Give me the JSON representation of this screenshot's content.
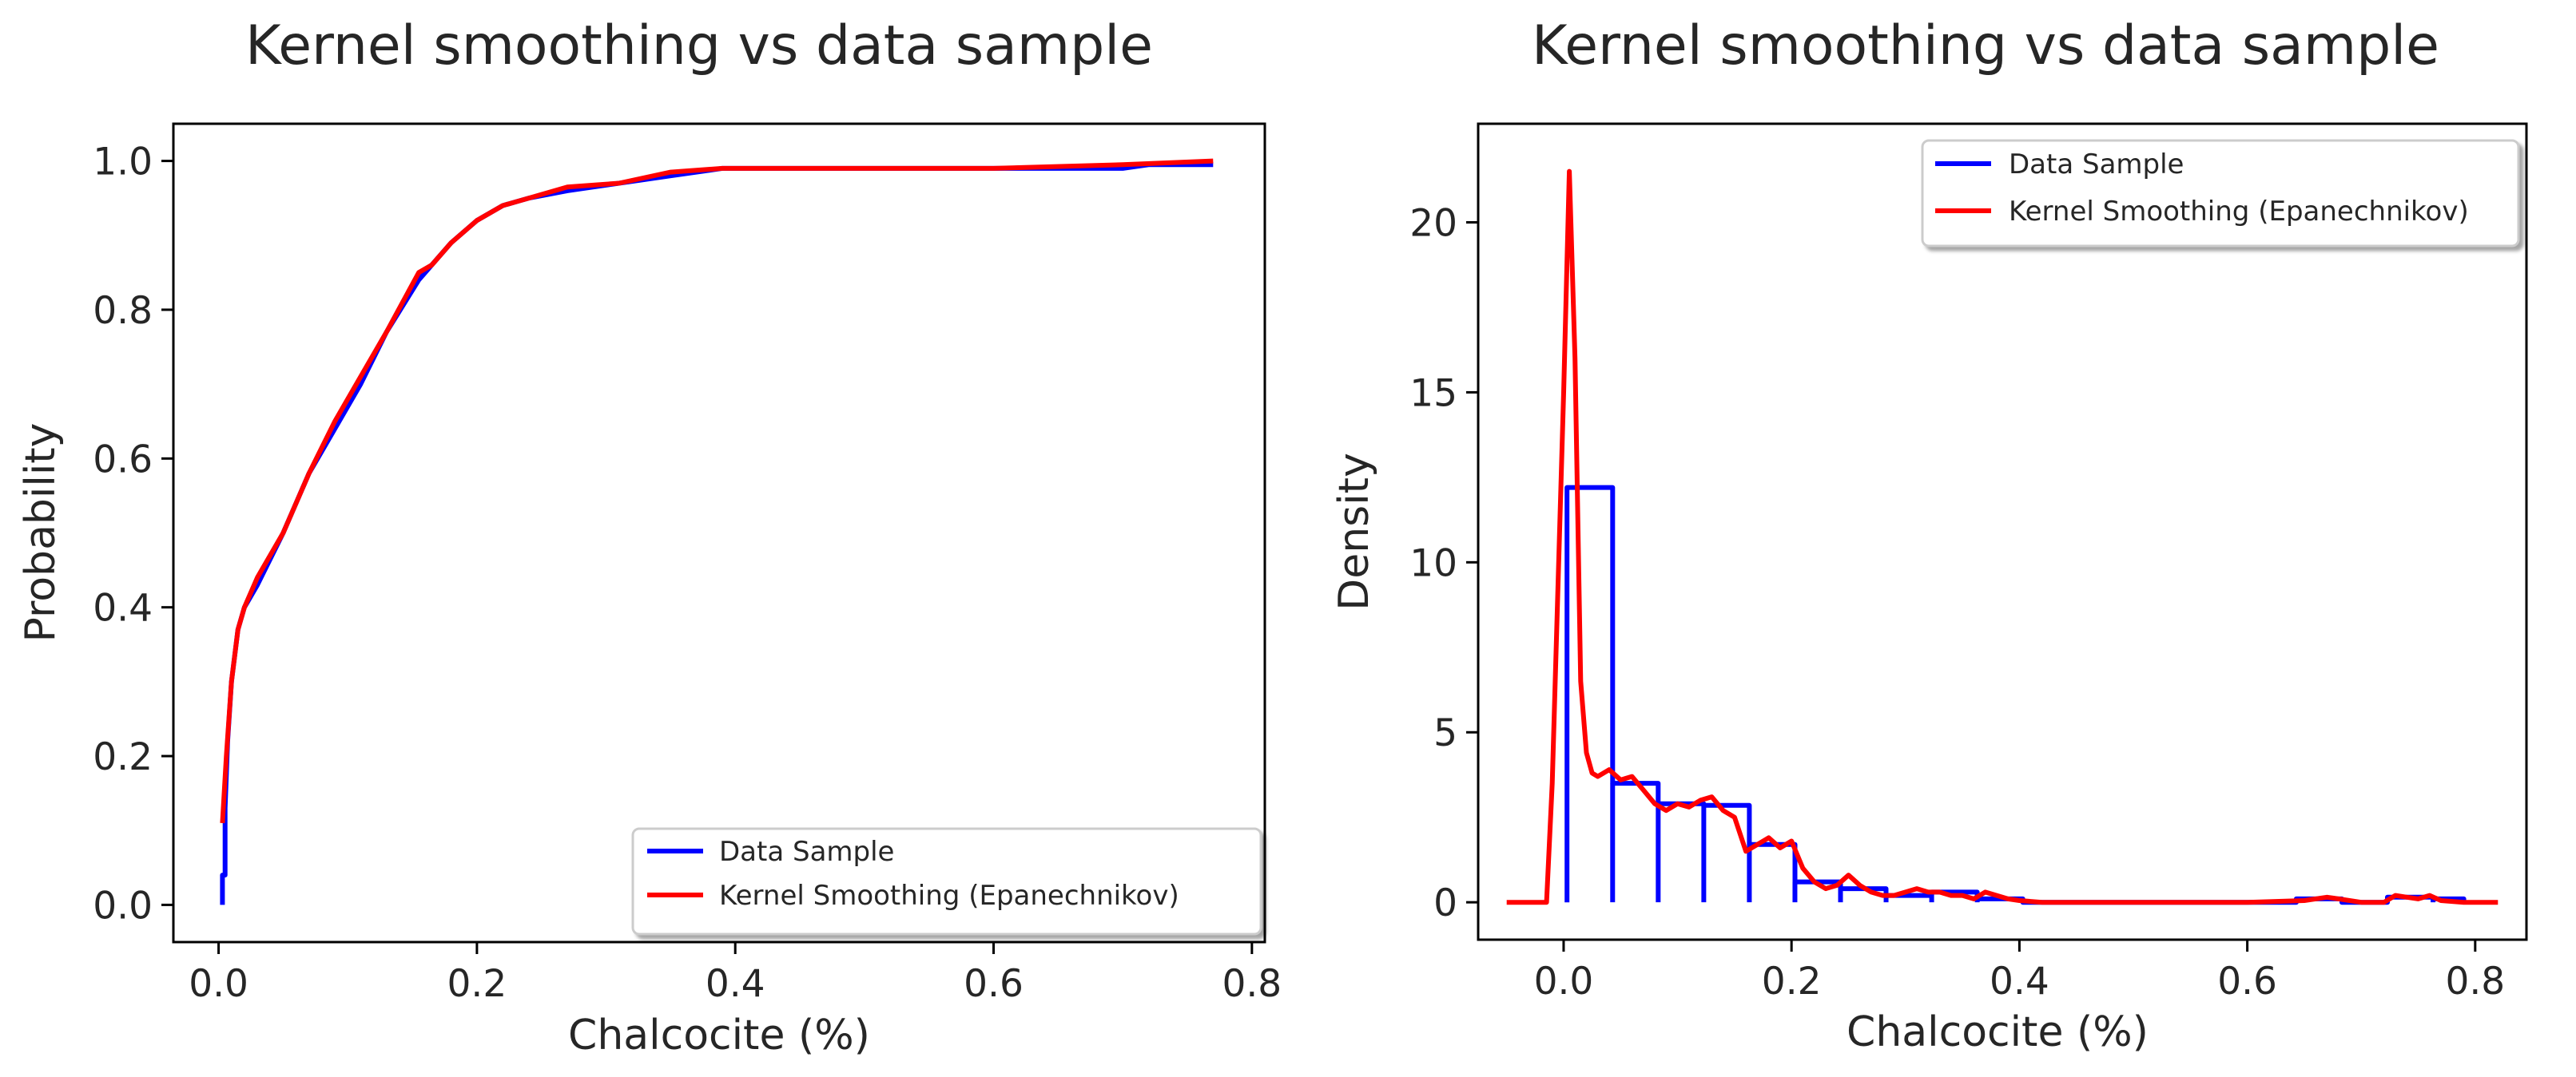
{
  "chart_data": [
    {
      "type": "line",
      "title": "Kernel smoothing vs data sample",
      "xlabel": "Chalcocite (%)",
      "ylabel": "Probability",
      "xlim": [
        -0.035,
        0.81
      ],
      "ylim": [
        -0.05,
        1.05
      ],
      "xticks": [
        0.0,
        0.2,
        0.4,
        0.6,
        0.8
      ],
      "xtick_labels": [
        "0.0",
        "0.2",
        "0.4",
        "0.6",
        "0.8"
      ],
      "yticks": [
        0.0,
        0.2,
        0.4,
        0.6,
        0.8,
        1.0
      ],
      "ytick_labels": [
        "0.0",
        "0.2",
        "0.4",
        "0.6",
        "0.8",
        "1.0"
      ],
      "legend": "lower-right",
      "series": [
        {
          "name": "Data Sample",
          "color": "#0000ff",
          "x": [
            0.003,
            0.003,
            0.005,
            0.005,
            0.007,
            0.01,
            0.015,
            0.02,
            0.03,
            0.05,
            0.07,
            0.09,
            0.11,
            0.13,
            0.155,
            0.165,
            0.18,
            0.2,
            0.22,
            0.24,
            0.27,
            0.31,
            0.35,
            0.39,
            0.4,
            0.6,
            0.7,
            0.72,
            0.77
          ],
          "y": [
            0.0,
            0.04,
            0.04,
            0.13,
            0.22,
            0.3,
            0.37,
            0.4,
            0.43,
            0.5,
            0.58,
            0.64,
            0.7,
            0.77,
            0.84,
            0.86,
            0.89,
            0.92,
            0.94,
            0.95,
            0.96,
            0.97,
            0.98,
            0.99,
            0.99,
            0.99,
            0.99,
            0.995,
            0.995
          ]
        },
        {
          "name": "Kernel Smoothing (Epanechnikov)",
          "color": "#ff0000",
          "x": [
            0.003,
            0.006,
            0.01,
            0.015,
            0.02,
            0.03,
            0.05,
            0.07,
            0.09,
            0.11,
            0.13,
            0.155,
            0.165,
            0.18,
            0.2,
            0.22,
            0.24,
            0.27,
            0.31,
            0.35,
            0.39,
            0.4,
            0.6,
            0.7,
            0.77
          ],
          "y": [
            0.11,
            0.2,
            0.3,
            0.37,
            0.4,
            0.44,
            0.5,
            0.58,
            0.65,
            0.71,
            0.77,
            0.85,
            0.86,
            0.89,
            0.92,
            0.94,
            0.95,
            0.965,
            0.97,
            0.985,
            0.99,
            0.99,
            0.99,
            0.995,
            1.0
          ]
        }
      ]
    },
    {
      "type": "line",
      "title": "Kernel smoothing vs data sample",
      "xlabel": "Chalcocite (%)",
      "ylabel": "Density",
      "xlim": [
        -0.075,
        0.845
      ],
      "ylim": [
        -1.1,
        22.9
      ],
      "xticks": [
        0.0,
        0.2,
        0.4,
        0.6,
        0.8
      ],
      "xtick_labels": [
        "0.0",
        "0.2",
        "0.4",
        "0.6",
        "0.8"
      ],
      "yticks": [
        0,
        5,
        10,
        15,
        20
      ],
      "ytick_labels": [
        "0",
        "5",
        "10",
        "15",
        "20"
      ],
      "legend": "top-right",
      "series": [
        {
          "name": "Data Sample",
          "color": "#0000ff",
          "style": "histogram-step",
          "bin_edges": [
            0.003,
            0.043,
            0.083,
            0.123,
            0.163,
            0.203,
            0.243,
            0.283,
            0.323,
            0.363,
            0.403,
            0.643,
            0.683,
            0.723,
            0.763,
            0.79
          ],
          "values": [
            12.2,
            3.5,
            2.9,
            2.85,
            1.7,
            0.6,
            0.4,
            0.2,
            0.3,
            0.1,
            0.0,
            0.1,
            0.0,
            0.15,
            0.1
          ]
        },
        {
          "name": "Kernel Smoothing (Epanechnikov)",
          "color": "#ff0000",
          "x": [
            -0.05,
            -0.015,
            -0.01,
            0.0,
            0.005,
            0.01,
            0.015,
            0.02,
            0.025,
            0.03,
            0.035,
            0.04,
            0.05,
            0.06,
            0.07,
            0.08,
            0.09,
            0.1,
            0.11,
            0.12,
            0.13,
            0.14,
            0.15,
            0.16,
            0.17,
            0.18,
            0.19,
            0.2,
            0.21,
            0.22,
            0.23,
            0.24,
            0.25,
            0.26,
            0.27,
            0.28,
            0.29,
            0.3,
            0.31,
            0.32,
            0.33,
            0.34,
            0.35,
            0.36,
            0.37,
            0.38,
            0.39,
            0.4,
            0.42,
            0.6,
            0.65,
            0.67,
            0.68,
            0.7,
            0.72,
            0.73,
            0.74,
            0.75,
            0.76,
            0.77,
            0.79,
            0.82
          ],
          "y": [
            0.0,
            0.0,
            3.5,
            15.0,
            21.5,
            16.0,
            6.5,
            4.4,
            3.8,
            3.7,
            3.8,
            3.9,
            3.6,
            3.7,
            3.3,
            2.9,
            2.7,
            2.9,
            2.8,
            3.0,
            3.1,
            2.7,
            2.5,
            1.5,
            1.7,
            1.9,
            1.6,
            1.8,
            1.0,
            0.6,
            0.4,
            0.5,
            0.8,
            0.5,
            0.3,
            0.2,
            0.2,
            0.3,
            0.4,
            0.3,
            0.3,
            0.2,
            0.2,
            0.1,
            0.3,
            0.2,
            0.1,
            0.05,
            0.0,
            0.0,
            0.05,
            0.15,
            0.1,
            0.0,
            0.0,
            0.2,
            0.15,
            0.1,
            0.2,
            0.05,
            0.0,
            0.0
          ]
        }
      ]
    }
  ]
}
